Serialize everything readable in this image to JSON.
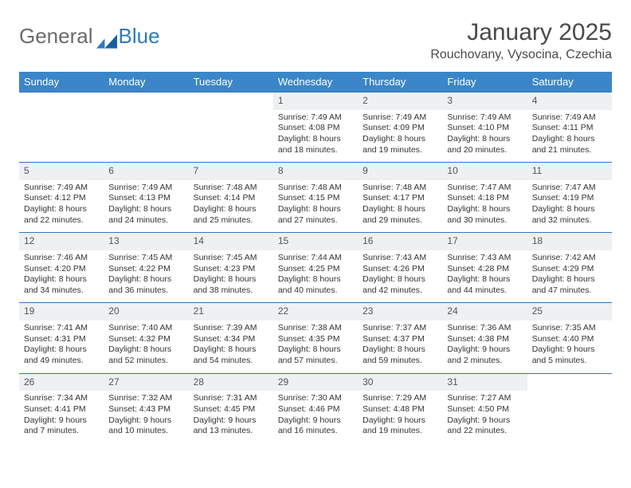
{
  "brand": {
    "name_part1": "General",
    "name_part2": "Blue"
  },
  "title": "January 2025",
  "location": "Rouchovany, Vysocina, Czechia",
  "colors": {
    "header_bg": "#3a86c8",
    "header_fg": "#ffffff",
    "daynum_bg": "#eef0f2",
    "rule": "#2f78bf",
    "text": "#333333",
    "title": "#4a4a4a",
    "logo_gray": "#6b6b6b",
    "logo_blue": "#2f78bf",
    "bg": "#ffffff"
  },
  "weekdays": [
    "Sunday",
    "Monday",
    "Tuesday",
    "Wednesday",
    "Thursday",
    "Friday",
    "Saturday"
  ],
  "weeks": [
    [
      null,
      null,
      null,
      {
        "n": "1",
        "sr": "7:49 AM",
        "ss": "4:08 PM",
        "dl": "8 hours and 18 minutes."
      },
      {
        "n": "2",
        "sr": "7:49 AM",
        "ss": "4:09 PM",
        "dl": "8 hours and 19 minutes."
      },
      {
        "n": "3",
        "sr": "7:49 AM",
        "ss": "4:10 PM",
        "dl": "8 hours and 20 minutes."
      },
      {
        "n": "4",
        "sr": "7:49 AM",
        "ss": "4:11 PM",
        "dl": "8 hours and 21 minutes."
      }
    ],
    [
      {
        "n": "5",
        "sr": "7:49 AM",
        "ss": "4:12 PM",
        "dl": "8 hours and 22 minutes."
      },
      {
        "n": "6",
        "sr": "7:49 AM",
        "ss": "4:13 PM",
        "dl": "8 hours and 24 minutes."
      },
      {
        "n": "7",
        "sr": "7:48 AM",
        "ss": "4:14 PM",
        "dl": "8 hours and 25 minutes."
      },
      {
        "n": "8",
        "sr": "7:48 AM",
        "ss": "4:15 PM",
        "dl": "8 hours and 27 minutes."
      },
      {
        "n": "9",
        "sr": "7:48 AM",
        "ss": "4:17 PM",
        "dl": "8 hours and 29 minutes."
      },
      {
        "n": "10",
        "sr": "7:47 AM",
        "ss": "4:18 PM",
        "dl": "8 hours and 30 minutes."
      },
      {
        "n": "11",
        "sr": "7:47 AM",
        "ss": "4:19 PM",
        "dl": "8 hours and 32 minutes."
      }
    ],
    [
      {
        "n": "12",
        "sr": "7:46 AM",
        "ss": "4:20 PM",
        "dl": "8 hours and 34 minutes."
      },
      {
        "n": "13",
        "sr": "7:45 AM",
        "ss": "4:22 PM",
        "dl": "8 hours and 36 minutes."
      },
      {
        "n": "14",
        "sr": "7:45 AM",
        "ss": "4:23 PM",
        "dl": "8 hours and 38 minutes."
      },
      {
        "n": "15",
        "sr": "7:44 AM",
        "ss": "4:25 PM",
        "dl": "8 hours and 40 minutes."
      },
      {
        "n": "16",
        "sr": "7:43 AM",
        "ss": "4:26 PM",
        "dl": "8 hours and 42 minutes."
      },
      {
        "n": "17",
        "sr": "7:43 AM",
        "ss": "4:28 PM",
        "dl": "8 hours and 44 minutes."
      },
      {
        "n": "18",
        "sr": "7:42 AM",
        "ss": "4:29 PM",
        "dl": "8 hours and 47 minutes."
      }
    ],
    [
      {
        "n": "19",
        "sr": "7:41 AM",
        "ss": "4:31 PM",
        "dl": "8 hours and 49 minutes."
      },
      {
        "n": "20",
        "sr": "7:40 AM",
        "ss": "4:32 PM",
        "dl": "8 hours and 52 minutes."
      },
      {
        "n": "21",
        "sr": "7:39 AM",
        "ss": "4:34 PM",
        "dl": "8 hours and 54 minutes."
      },
      {
        "n": "22",
        "sr": "7:38 AM",
        "ss": "4:35 PM",
        "dl": "8 hours and 57 minutes."
      },
      {
        "n": "23",
        "sr": "7:37 AM",
        "ss": "4:37 PM",
        "dl": "8 hours and 59 minutes."
      },
      {
        "n": "24",
        "sr": "7:36 AM",
        "ss": "4:38 PM",
        "dl": "9 hours and 2 minutes."
      },
      {
        "n": "25",
        "sr": "7:35 AM",
        "ss": "4:40 PM",
        "dl": "9 hours and 5 minutes."
      }
    ],
    [
      {
        "n": "26",
        "sr": "7:34 AM",
        "ss": "4:41 PM",
        "dl": "9 hours and 7 minutes."
      },
      {
        "n": "27",
        "sr": "7:32 AM",
        "ss": "4:43 PM",
        "dl": "9 hours and 10 minutes."
      },
      {
        "n": "28",
        "sr": "7:31 AM",
        "ss": "4:45 PM",
        "dl": "9 hours and 13 minutes."
      },
      {
        "n": "29",
        "sr": "7:30 AM",
        "ss": "4:46 PM",
        "dl": "9 hours and 16 minutes."
      },
      {
        "n": "30",
        "sr": "7:29 AM",
        "ss": "4:48 PM",
        "dl": "9 hours and 19 minutes."
      },
      {
        "n": "31",
        "sr": "7:27 AM",
        "ss": "4:50 PM",
        "dl": "9 hours and 22 minutes."
      },
      null
    ]
  ],
  "labels": {
    "sunrise": "Sunrise:",
    "sunset": "Sunset:",
    "daylight": "Daylight:"
  }
}
